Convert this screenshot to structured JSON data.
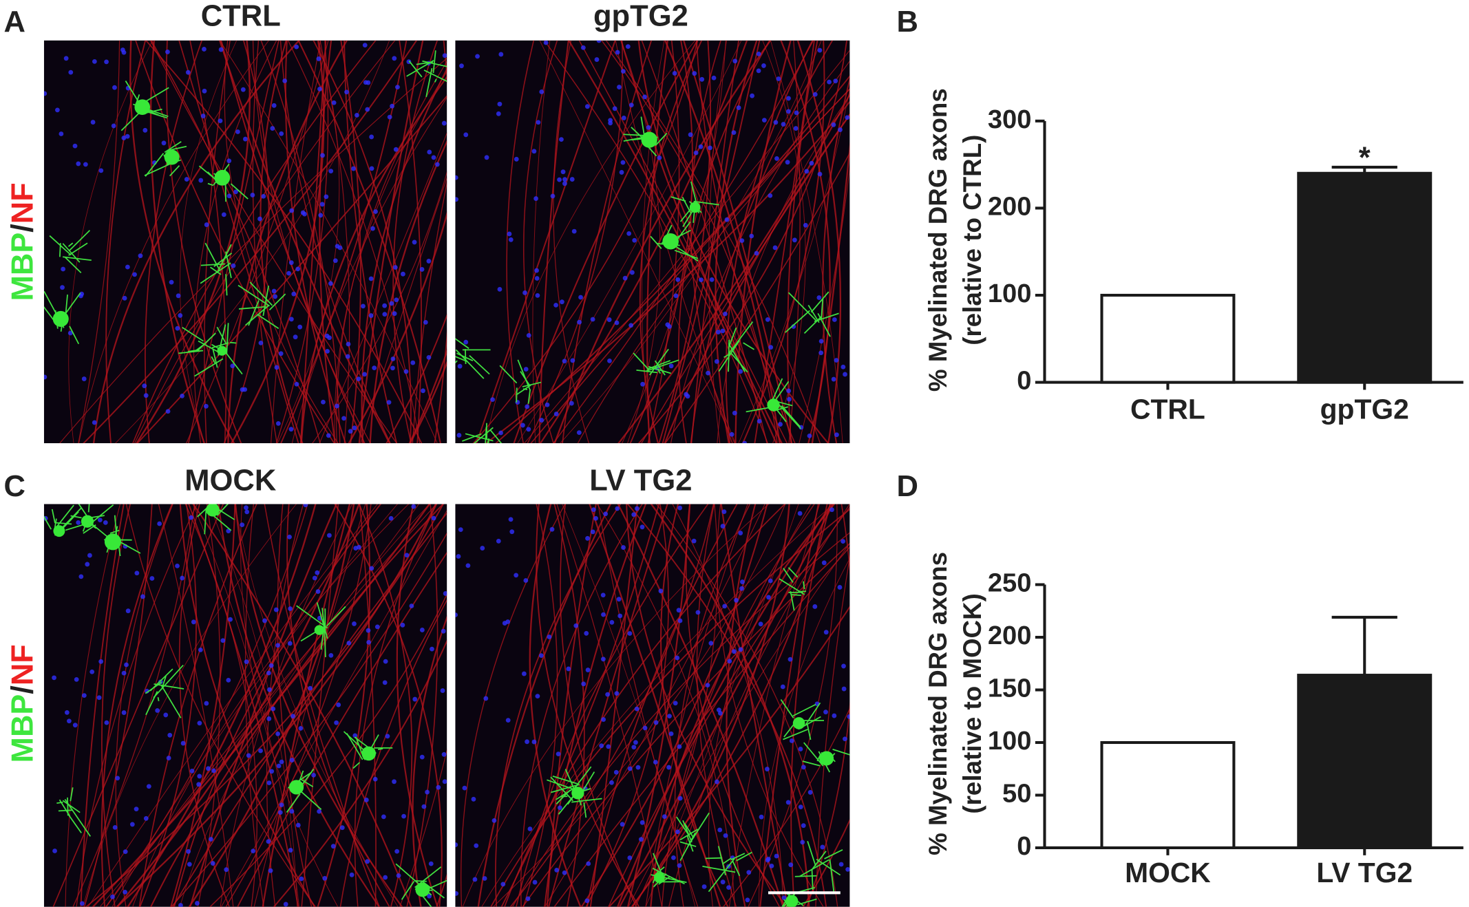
{
  "panel_letters": [
    "A",
    "B",
    "C",
    "D"
  ],
  "image_titles": [
    "CTRL",
    "gpTG2",
    "MOCK",
    "LV TG2"
  ],
  "stain_label": [
    "MBP",
    "/",
    "NF"
  ],
  "chart_data": [
    {
      "type": "bar",
      "ylabel": "% Myelinated DRG axons",
      "ylabel2": "(relative to CTRL)",
      "categories": [
        "CTRL",
        "gpTG2"
      ],
      "values": [
        100,
        240
      ],
      "errors": [
        0,
        7
      ],
      "colors": [
        "#ffffff",
        "#1a1a1a"
      ],
      "edge_color": "#1a1a1a",
      "annotations": [
        null,
        "*"
      ],
      "ylim": [
        0,
        300
      ],
      "yticks": [
        0,
        100,
        200,
        300
      ],
      "grid": false
    },
    {
      "type": "bar",
      "ylabel": "% Myelinated DRG axons",
      "ylabel2": "(relative to MOCK)",
      "categories": [
        "MOCK",
        "LV TG2"
      ],
      "values": [
        100,
        164
      ],
      "errors": [
        0,
        55
      ],
      "colors": [
        "#ffffff",
        "#1a1a1a"
      ],
      "edge_color": "#1a1a1a",
      "annotations": [
        null,
        null
      ],
      "ylim": [
        0,
        250
      ],
      "yticks": [
        0,
        50,
        100,
        150,
        200,
        250
      ],
      "grid": false
    }
  ]
}
